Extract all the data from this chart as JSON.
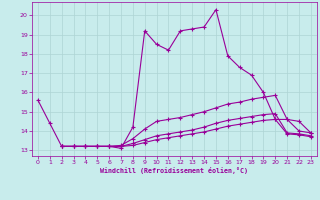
{
  "xlabel": "Windchill (Refroidissement éolien,°C)",
  "background_color": "#c8ecec",
  "grid_color": "#aed4d4",
  "line_color": "#990099",
  "xlim": [
    -0.5,
    23.5
  ],
  "ylim": [
    12.7,
    20.7
  ],
  "xticks": [
    0,
    1,
    2,
    3,
    4,
    5,
    6,
    7,
    8,
    9,
    10,
    11,
    12,
    13,
    14,
    15,
    16,
    17,
    18,
    19,
    20,
    21,
    22,
    23
  ],
  "yticks": [
    13,
    14,
    15,
    16,
    17,
    18,
    19,
    20
  ],
  "curve1_x": [
    0,
    1,
    2,
    3,
    4,
    5,
    6,
    7,
    8,
    9,
    10,
    11,
    12,
    13,
    14,
    15,
    16,
    17,
    18,
    19,
    20,
    21,
    22,
    23
  ],
  "curve1_y": [
    15.6,
    14.4,
    13.2,
    13.2,
    13.2,
    13.2,
    13.2,
    13.1,
    14.2,
    19.2,
    18.5,
    18.2,
    19.2,
    19.3,
    19.4,
    20.3,
    17.9,
    17.3,
    16.9,
    16.0,
    14.6,
    14.6,
    14.0,
    13.9
  ],
  "curve2_x": [
    2,
    3,
    4,
    5,
    6,
    7,
    8,
    9,
    10,
    11,
    12,
    13,
    14,
    15,
    16,
    17,
    18,
    19,
    20,
    21,
    22,
    23
  ],
  "curve2_y": [
    13.2,
    13.2,
    13.2,
    13.2,
    13.2,
    13.25,
    13.6,
    14.1,
    14.5,
    14.6,
    14.7,
    14.85,
    15.0,
    15.2,
    15.4,
    15.5,
    15.65,
    15.75,
    15.85,
    14.6,
    14.5,
    13.9
  ],
  "curve3_x": [
    2,
    3,
    4,
    5,
    6,
    7,
    8,
    9,
    10,
    11,
    12,
    13,
    14,
    15,
    16,
    17,
    18,
    19,
    20,
    21,
    22,
    23
  ],
  "curve3_y": [
    13.2,
    13.2,
    13.2,
    13.2,
    13.2,
    13.2,
    13.35,
    13.55,
    13.75,
    13.85,
    13.95,
    14.05,
    14.2,
    14.4,
    14.55,
    14.65,
    14.75,
    14.85,
    14.9,
    13.9,
    13.85,
    13.75
  ],
  "curve4_x": [
    2,
    3,
    4,
    5,
    6,
    7,
    8,
    9,
    10,
    11,
    12,
    13,
    14,
    15,
    16,
    17,
    18,
    19,
    20,
    21,
    22,
    23
  ],
  "curve4_y": [
    13.2,
    13.2,
    13.2,
    13.2,
    13.2,
    13.2,
    13.25,
    13.4,
    13.55,
    13.65,
    13.75,
    13.85,
    13.95,
    14.1,
    14.25,
    14.35,
    14.45,
    14.55,
    14.6,
    13.85,
    13.8,
    13.7
  ]
}
